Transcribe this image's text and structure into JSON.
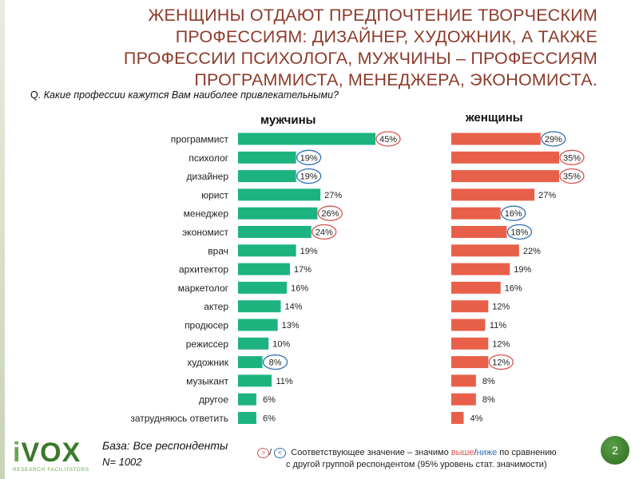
{
  "title": "ЖЕНЩИНЫ ОТДАЮТ ПРЕДПОЧТЕНИЕ ТВОРЧЕСКИМ ПРОФЕССИЯМ: ДИЗАЙНЕР, ХУДОЖНИК, А ТАКЖЕ ПРОФЕССИИ ПСИХОЛОГА, МУЖЧИНЫ – ПРОФЕССИЯМ ПРОГРАММИСТА, МЕНЕДЖЕРА, ЭКОНОМИСТА.",
  "question_prefix": "Q.",
  "question_text": "Какие профессии кажутся Вам наиболее привлекательными?",
  "base_label": "База: Все респонденты",
  "n_label": "N= 1002",
  "legend": {
    "gt_symbol": ">",
    "slash": "/",
    "lt_symbol": "<",
    "text_start": "Соответствующее значение – значимо",
    "higher": "выше",
    "sep": "/",
    "lower": "ниже",
    "text_end": "по сравнению",
    "line2": "с другой группой респондентом (95% уровень стат. значимости)"
  },
  "logo": {
    "word_i": "i",
    "word_rest": "VOX",
    "sub": "RESEARCH FACILITATORS"
  },
  "page_number": "2",
  "colors": {
    "men": "#1db37f",
    "women": "#e8604a",
    "higher": "#d9534f",
    "lower": "#2f6fb5",
    "title": "#8c3b2c"
  },
  "chart_data": {
    "type": "bar",
    "orientation": "horizontal",
    "categories": [
      "программист",
      "психолог",
      "дизайнер",
      "юрист",
      "менеджер",
      "экономист",
      "врач",
      "архитектор",
      "маркетолог",
      "актер",
      "продюсер",
      "режиссер",
      "художник",
      "музыкант",
      "другое",
      "затрудняюсь ответить"
    ],
    "series": [
      {
        "name": "мужчины",
        "values": [
          45,
          19,
          19,
          27,
          26,
          24,
          19,
          17,
          16,
          14,
          13,
          10,
          8,
          11,
          6,
          6
        ],
        "significance": [
          "higher",
          "lower",
          "lower",
          null,
          "higher",
          "higher",
          null,
          null,
          null,
          null,
          null,
          null,
          "lower",
          null,
          null,
          null
        ]
      },
      {
        "name": "женщины",
        "values": [
          29,
          35,
          35,
          27,
          16,
          18,
          22,
          19,
          16,
          12,
          11,
          12,
          12,
          8,
          8,
          4
        ],
        "significance": [
          "lower",
          "higher",
          "higher",
          null,
          "lower",
          "lower",
          null,
          null,
          null,
          null,
          null,
          null,
          "higher",
          null,
          null,
          null
        ]
      }
    ],
    "value_suffix": "%",
    "title": "",
    "xlabel": "",
    "ylabel": "",
    "xlim": [
      0,
      45
    ]
  }
}
